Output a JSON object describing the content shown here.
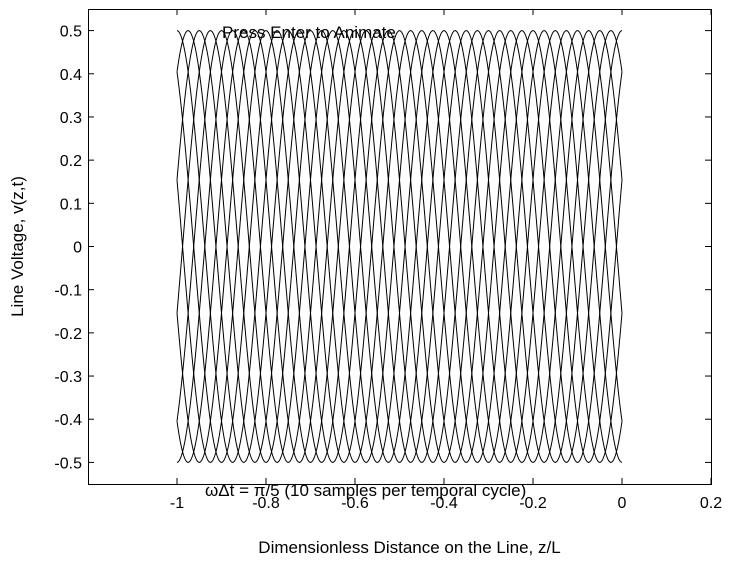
{
  "chart_data": {
    "type": "line",
    "title": "",
    "xlabel": "Dimensionless Distance on the Line, z/L",
    "ylabel": "Line Voltage, v(z,t)",
    "xlim": [
      -1.2,
      0.2
    ],
    "ylim": [
      -0.55,
      0.55
    ],
    "xticks": [
      -1,
      -0.8,
      -0.6,
      -0.4,
      -0.2,
      0,
      0.2
    ],
    "yticks": [
      -0.5,
      -0.4,
      -0.3,
      -0.2,
      -0.1,
      0,
      0.1,
      0.2,
      0.3,
      0.4,
      0.5
    ],
    "xtick_labels": [
      "-1",
      "-0.8",
      "-0.6",
      "-0.4",
      "-0.2",
      "0",
      "0.2"
    ],
    "ytick_labels": [
      "-0.5",
      "-0.4",
      "-0.3",
      "-0.2",
      "-0.1",
      "0",
      "0.1",
      "0.2",
      "0.3",
      "0.4",
      "0.5"
    ],
    "grid": false,
    "line_color": "#000000",
    "series_formula": "v = 0.5*cos(2*pi*z/lambda - omega*t)",
    "wavelength": 0.25,
    "x_range": [
      -1,
      0
    ],
    "amplitude": 0.5,
    "phase_step": "pi/5",
    "samples": 10,
    "annotations": {
      "top": "Press Enter to Animate",
      "bottom": "ωΔt = π/5 (10 samples per temporal cycle)"
    }
  }
}
